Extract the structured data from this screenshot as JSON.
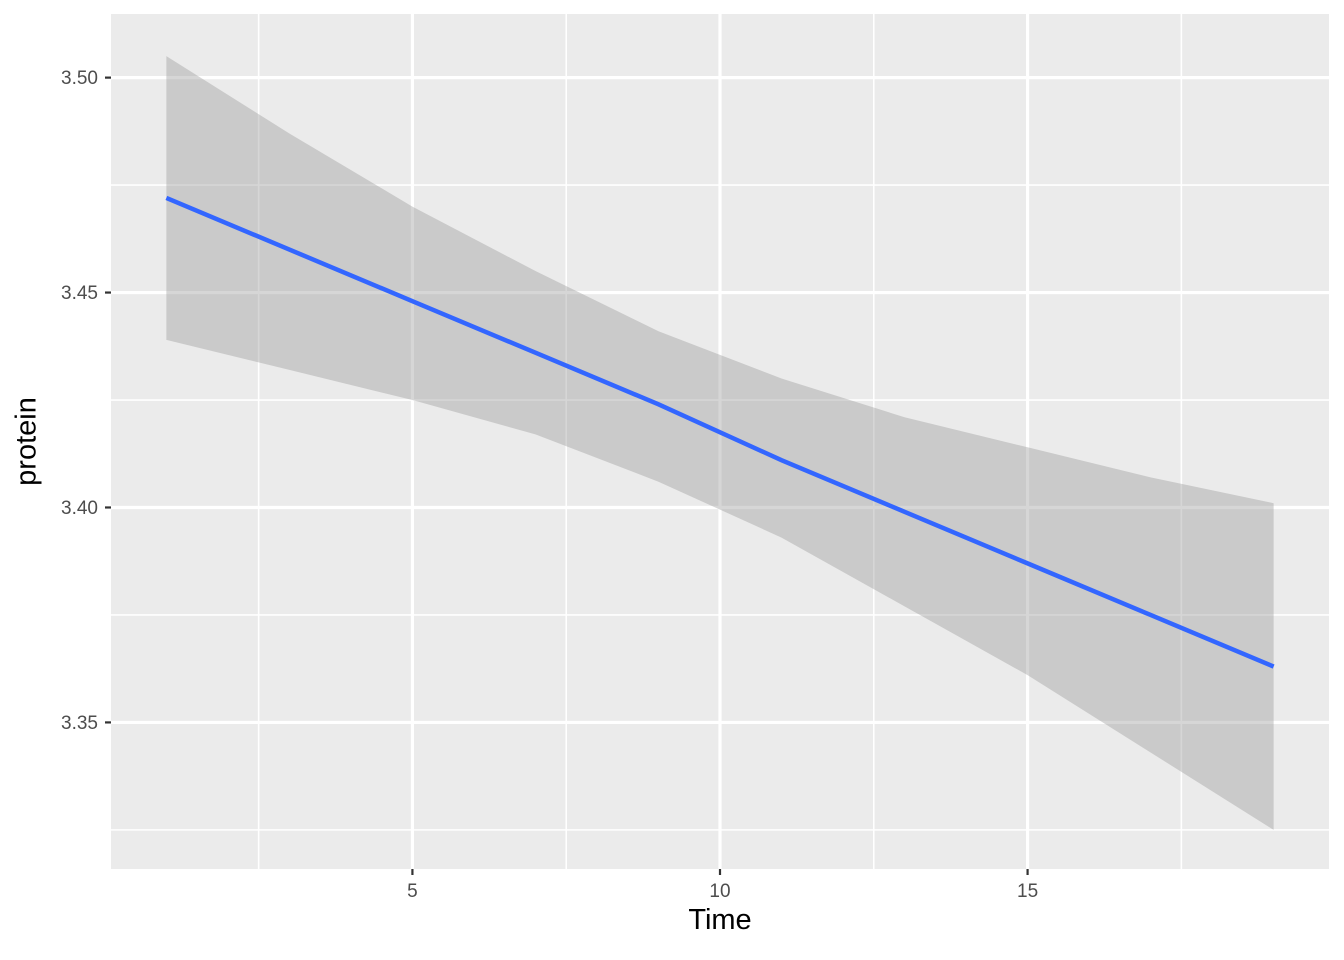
{
  "chart_data": {
    "type": "line",
    "title": "",
    "xlabel": "Time",
    "ylabel": "protein",
    "xlim": [
      0.1,
      19.9
    ],
    "ylim": [
      3.3159,
      3.5148
    ],
    "x_ticks": [
      5,
      10,
      15
    ],
    "x_tick_labels": [
      "5",
      "10",
      "15"
    ],
    "x_minor_ticks": [
      2.5,
      7.5,
      12.5,
      17.5
    ],
    "y_ticks": [
      3.35,
      3.4,
      3.45,
      3.5
    ],
    "y_tick_labels": [
      "3.35",
      "3.40",
      "3.45",
      "3.50"
    ],
    "y_minor_ticks": [
      3.325,
      3.375,
      3.425,
      3.475
    ],
    "grid": true,
    "legend": false,
    "series": [
      {
        "name": "linear-fit",
        "color": "#3366FF",
        "x": [
          1,
          3,
          5,
          7,
          9,
          11,
          13,
          15,
          17,
          19
        ],
        "y": [
          3.472,
          3.46,
          3.448,
          3.436,
          3.424,
          3.411,
          3.399,
          3.387,
          3.375,
          3.363
        ]
      }
    ],
    "ribbon": {
      "name": "confidence-band",
      "color": "#999999",
      "opacity": 0.4,
      "x": [
        1,
        3,
        5,
        7,
        9,
        11,
        13,
        15,
        17,
        19
      ],
      "upper": [
        3.505,
        3.487,
        3.47,
        3.455,
        3.441,
        3.43,
        3.421,
        3.414,
        3.407,
        3.401
      ],
      "lower": [
        3.439,
        3.432,
        3.425,
        3.417,
        3.406,
        3.393,
        3.377,
        3.361,
        3.343,
        3.325
      ]
    },
    "colors": {
      "panel_background": "#EBEBEB",
      "grid": "#FFFFFF",
      "tick_mark": "#333333",
      "tick_text": "#4D4D4D",
      "axis_title": "#000000",
      "page_background": "#FFFFFF"
    }
  }
}
